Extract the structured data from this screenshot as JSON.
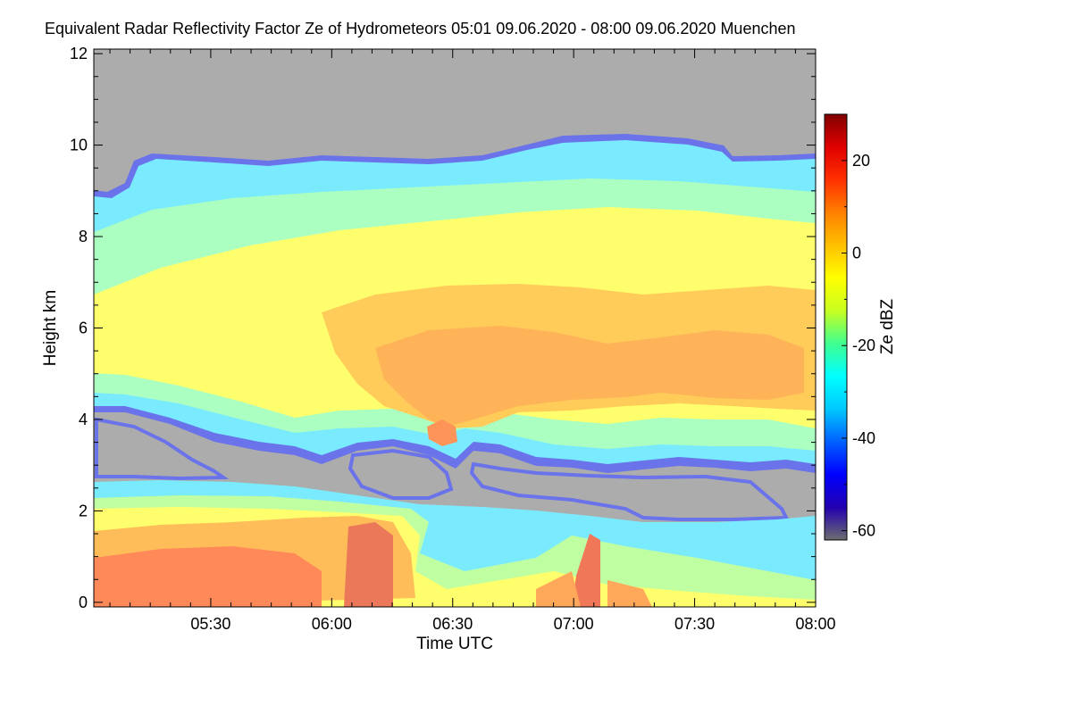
{
  "chart_data": {
    "type": "heatmap",
    "title": "Equivalent Radar Reflectivity Factor Ze of Hydrometeors   05:01 09.06.2020 - 08:00 09.06.2020 Muenchen",
    "xlabel": "Time UTC",
    "ylabel": "Height km",
    "x_ticks": [
      "05:30",
      "06:00",
      "06:30",
      "07:00",
      "07:30",
      "08:00"
    ],
    "x_tick_minutes": [
      330,
      360,
      390,
      420,
      450,
      480
    ],
    "xlim_minutes": [
      301,
      480
    ],
    "y_ticks": [
      "0",
      "2",
      "4",
      "6",
      "8",
      "10",
      "12"
    ],
    "y_tick_values": [
      0,
      2,
      4,
      6,
      8,
      10,
      12
    ],
    "ylim": [
      -0.1,
      12.1
    ],
    "colorbar": {
      "label": "Ze dBZ",
      "ticks": [
        "20",
        "0",
        "-20",
        "-40",
        "-60"
      ],
      "tick_values": [
        20,
        0,
        -20,
        -40,
        -60
      ],
      "range": [
        -62,
        30
      ],
      "colors": [
        "#6e6e6e",
        "#2200b0",
        "#0000ff",
        "#0060ff",
        "#00c8ff",
        "#00ffff",
        "#40ff90",
        "#c8ff20",
        "#ffff00",
        "#ffc000",
        "#ff8000",
        "#ff3000",
        "#e00000",
        "#800000"
      ]
    },
    "no_signal_color": "#808080",
    "layers": [
      {
        "description_key": "ice_cloud",
        "top_km": [
          8.9,
          9.7,
          9.7,
          9.8,
          9.9,
          10.1,
          10.0,
          9.9,
          9.7
        ],
        "base_km": [
          4.1,
          3.0,
          2.9,
          3.2,
          3.3,
          3.4,
          3.5,
          3.2,
          3.0
        ],
        "times_minutes": [
          301,
          312,
          335,
          360,
          390,
          420,
          440,
          465,
          480
        ],
        "peak_dbz": 8
      },
      {
        "description_key": "lower_layer",
        "top_km": [
          2.8,
          2.6,
          2.3,
          2.0,
          2.0,
          1.8,
          1.8,
          1.7,
          1.8
        ],
        "base_km": [
          0,
          0,
          0,
          0,
          0,
          0,
          0,
          0,
          0
        ],
        "times_minutes": [
          301,
          330,
          360,
          390,
          410,
          430,
          450,
          470,
          480
        ],
        "peak_dbz": 18
      }
    ]
  }
}
